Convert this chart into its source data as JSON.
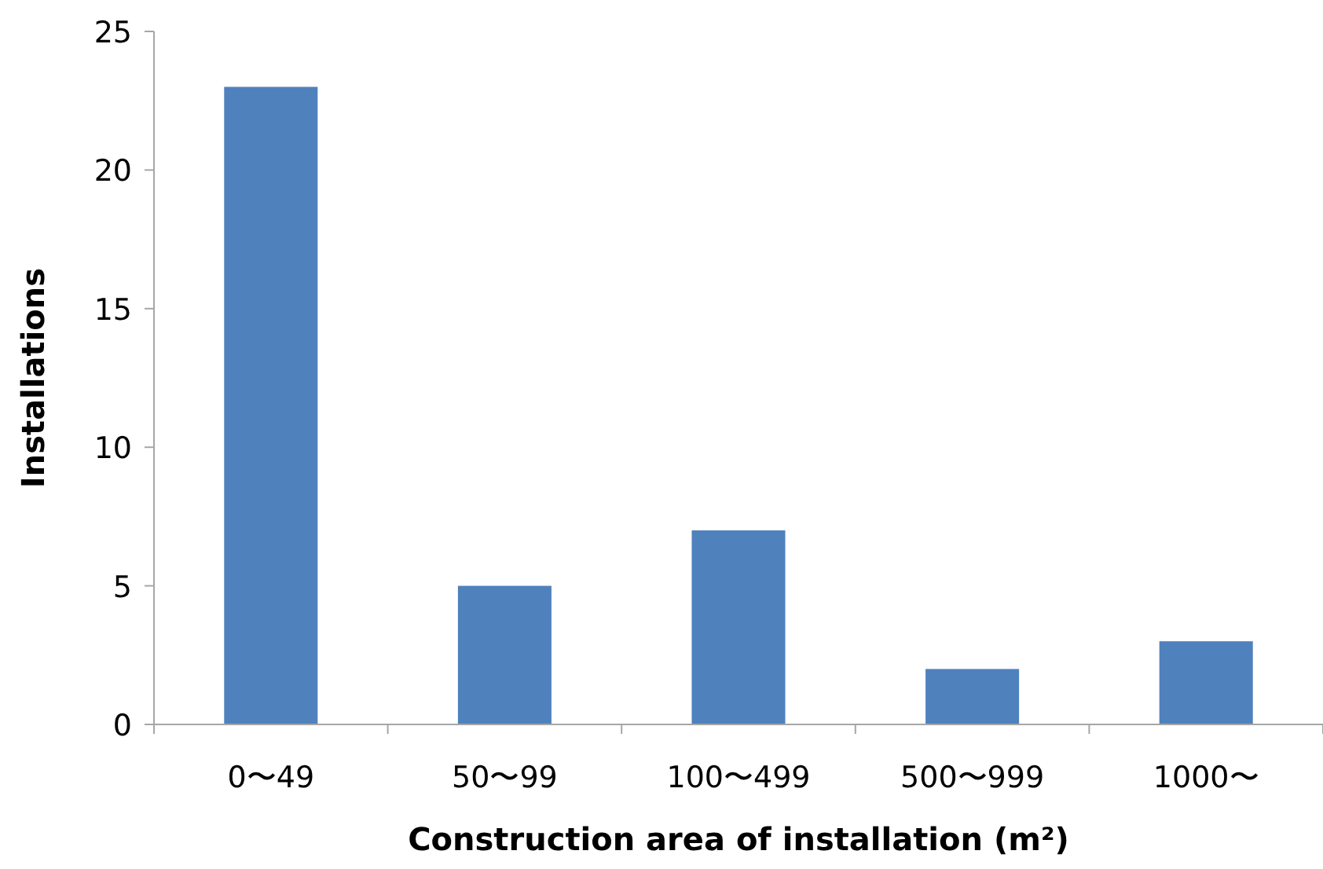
{
  "chart_data": {
    "type": "bar",
    "xlabel": "Construction area of installation (m²)",
    "ylabel": "Installations",
    "categories": [
      "0〜49",
      "50〜99",
      "100〜499",
      "500〜999",
      "1000〜"
    ],
    "values": [
      23,
      5,
      7,
      2,
      3
    ],
    "color": "#4f81bd",
    "ylim": [
      0,
      25
    ],
    "yticks": [
      0,
      5,
      10,
      15,
      20,
      25
    ],
    "grid": false
  }
}
